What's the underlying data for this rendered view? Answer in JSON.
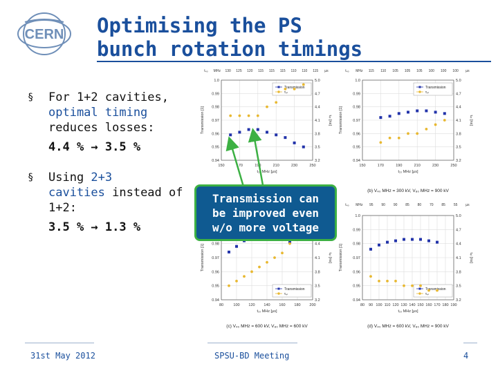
{
  "slide": {
    "title_line1": "Optimising the PS",
    "title_line2": "bunch rotation timings",
    "logo_text": "CERN",
    "colors": {
      "title": "#1a4f9c",
      "callout_bg": "#0f5a91",
      "callout_border": "#3cb043",
      "transmission": "#2233aa",
      "tau": "#e8b830"
    }
  },
  "bullets": [
    {
      "marker": "§",
      "text_lines": [
        "For 1+2 cavities,"
      ],
      "highlight_lines": [
        "optimal timing"
      ],
      "tail_lines": [
        "reduces losses:"
      ],
      "equation": "4.4 % → 3.5 %"
    },
    {
      "marker": "§",
      "prefix": "Using ",
      "highlight": "2+3",
      "line2_highlight": "cavities",
      "line2_tail": " instead of",
      "line3": "1+2:",
      "equation": "3.5 % → 1.3 %"
    }
  ],
  "callout": {
    "line1": "Transmission can",
    "line2": "be improved even",
    "line3": "w/o more voltage"
  },
  "footer": {
    "date": "31st May 2012",
    "meeting": "SPSU-BD Meeting",
    "page": "4"
  },
  "chart_data": [
    {
      "type": "scatter",
      "panel": "a",
      "xlabel": "t₁₀ MHz [μs]",
      "ylabel": "Transmission [1]",
      "y2label": "τ₄ₗ [ns]",
      "xlim": [
        150,
        250
      ],
      "ylim": [
        0.94,
        1.0
      ],
      "y2lim": [
        3.2,
        5.0
      ],
      "xticks": [
        "150",
        "170",
        "190",
        "210",
        "230",
        "250"
      ],
      "yticks": [
        "0.94",
        "0.95",
        "0.96",
        "0.97",
        "0.98",
        "0.99",
        "1.0"
      ],
      "y2ticks": [
        "3.2",
        "3.5",
        "3.8",
        "4.1",
        "4.4",
        "4.7",
        "5.0"
      ],
      "top_axis": [
        "t₄₀",
        "MHz",
        "130",
        "125",
        "120",
        "115",
        "115",
        "115",
        "110",
        "110",
        "115",
        "µs"
      ],
      "legend": [
        "Transmission",
        "τ₄ₗ"
      ],
      "series": [
        {
          "name": "Transmission",
          "x": [
            160,
            170,
            180,
            190,
            200,
            210,
            220,
            230,
            240
          ],
          "values": [
            0.959,
            0.961,
            0.963,
            0.963,
            0.961,
            0.959,
            0.957,
            0.953,
            0.95
          ]
        },
        {
          "name": "τ₄ₗ",
          "x": [
            160,
            170,
            180,
            190,
            200,
            210,
            220,
            230,
            240
          ],
          "values": [
            4.2,
            4.2,
            4.2,
            4.2,
            4.4,
            4.5,
            4.8,
            4.8,
            4.9
          ]
        }
      ]
    },
    {
      "type": "scatter",
      "panel": "b",
      "caption": "(b) V₄₀ MHz = 300 kV, V₈₀ MHz = 900 kV",
      "xlabel": "t₁₀ MHz [μs]",
      "ylabel": "Transmission [1]",
      "y2label": "τ₄ₗ [ns]",
      "xlim": [
        150,
        250
      ],
      "ylim": [
        0.94,
        1.0
      ],
      "y2lim": [
        3.2,
        5.0
      ],
      "xticks": [
        "150",
        "170",
        "190",
        "210",
        "230",
        "250"
      ],
      "yticks": [
        "0.94",
        "0.95",
        "0.96",
        "0.97",
        "0.98",
        "0.99",
        "1.0"
      ],
      "y2ticks": [
        "3.2",
        "3.5",
        "3.8",
        "4.1",
        "4.4",
        "4.7",
        "5.0"
      ],
      "top_axis": [
        "t₄₀",
        "MHz",
        "115",
        "110",
        "105",
        "105",
        "105",
        "100",
        "100",
        "100",
        "µs"
      ],
      "legend": [
        "Transmission",
        "τ₄ₗ"
      ],
      "series": [
        {
          "name": "Transmission",
          "x": [
            170,
            180,
            190,
            200,
            210,
            220,
            230,
            240
          ],
          "values": [
            0.972,
            0.973,
            0.975,
            0.976,
            0.977,
            0.977,
            0.976,
            0.975
          ]
        },
        {
          "name": "τ₄ₗ",
          "x": [
            170,
            180,
            190,
            200,
            210,
            220,
            230,
            240
          ],
          "values": [
            3.6,
            3.7,
            3.7,
            3.8,
            3.8,
            3.9,
            4.0,
            4.1
          ]
        }
      ]
    },
    {
      "type": "scatter",
      "panel": "c",
      "caption": "(c) V₄₀ MHz = 600 kV, V₈₀ MHz = 600 kV",
      "xlabel": "t₁₀ MHz [μs]",
      "ylabel": "Transmission [1]",
      "y2label": "τ₄ₗ [ns]",
      "xlim": [
        80,
        200
      ],
      "ylim": [
        0.94,
        1.0
      ],
      "y2lim": [
        3.2,
        5.0
      ],
      "xticks": [
        "80",
        "100",
        "120",
        "140",
        "160",
        "180",
        "200"
      ],
      "yticks": [
        "0.94",
        "0.95",
        "0.96",
        "0.97",
        "0.98",
        "0.99",
        "1.0"
      ],
      "y2ticks": [
        "3.2",
        "3.5",
        "3.8",
        "4.1",
        "4.4",
        "4.7",
        "5.0"
      ],
      "legend": [
        "Transmission",
        "τ₄ₗ"
      ],
      "series": [
        {
          "name": "Transmission",
          "x": [
            90,
            100,
            110,
            120,
            130,
            140,
            150,
            160,
            170
          ],
          "values": [
            0.974,
            0.978,
            0.982,
            0.984,
            0.985,
            0.985,
            0.984,
            0.983,
            0.981
          ]
        },
        {
          "name": "τ₄ₗ",
          "x": [
            90,
            100,
            110,
            120,
            130,
            140,
            150,
            160,
            170
          ],
          "values": [
            3.5,
            3.6,
            3.7,
            3.8,
            3.9,
            4.0,
            4.1,
            4.2,
            4.4
          ]
        }
      ]
    },
    {
      "type": "scatter",
      "panel": "d",
      "caption": "(d) V₄₀ MHz = 600 kV, V₈₀ MHz = 900 kV",
      "xlabel": "t₁₀ MHz [μs]",
      "ylabel": "Transmission [1]",
      "y2label": "τ₄ₗ [ns]",
      "xlim": [
        80,
        190
      ],
      "ylim": [
        0.94,
        1.0
      ],
      "y2lim": [
        3.2,
        5.0
      ],
      "xticks": [
        "80",
        "90",
        "100",
        "110",
        "120",
        "130",
        "140",
        "150",
        "160",
        "170",
        "180",
        "190"
      ],
      "yticks": [
        "0.94",
        "0.95",
        "0.96",
        "0.97",
        "0.98",
        "0.99",
        "1.0"
      ],
      "y2ticks": [
        "3.2",
        "3.5",
        "3.8",
        "4.1",
        "4.4",
        "4.7",
        "5.0"
      ],
      "top_axis": [
        "t₄₀",
        "MHz",
        "95",
        "90",
        "90",
        "85",
        "80",
        "70",
        "85",
        "55",
        "µs"
      ],
      "legend": [
        "Transmission",
        "τ₄ₗ"
      ],
      "series": [
        {
          "name": "Transmission",
          "x": [
            90,
            100,
            110,
            120,
            130,
            140,
            150,
            160,
            170
          ],
          "values": [
            0.976,
            0.979,
            0.981,
            0.982,
            0.983,
            0.983,
            0.983,
            0.982,
            0.981
          ]
        },
        {
          "name": "τ₄ₗ",
          "x": [
            90,
            100,
            110,
            120,
            130,
            140,
            150,
            160,
            170
          ],
          "values": [
            3.7,
            3.6,
            3.6,
            3.6,
            3.5,
            3.5,
            3.5,
            3.4,
            3.4
          ]
        }
      ]
    }
  ]
}
